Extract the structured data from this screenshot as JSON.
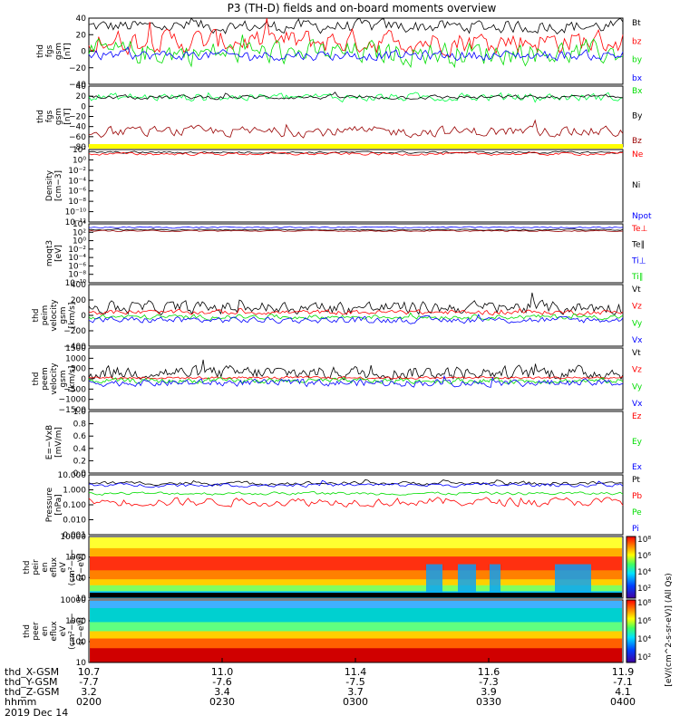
{
  "title": "P3 (TH-D) fields and on-board moments overview",
  "colors": {
    "black": "#000000",
    "red": "#ff0000",
    "green": "#00dd00",
    "blue": "#0000ff",
    "darkred": "#990000",
    "bright_green": "#00ff44",
    "yellow": "#ffff00"
  },
  "panels": [
    {
      "ylabel": [
        "thd",
        "fgs",
        "gsm",
        "[nT]"
      ],
      "yticks": [
        "40",
        "20",
        "0",
        "−20",
        "−40"
      ],
      "legend": [
        {
          "text": "Bt",
          "color": "black"
        },
        {
          "text": "bz",
          "color": "red"
        },
        {
          "text": "by",
          "color": "green"
        },
        {
          "text": "bx",
          "color": "blue"
        }
      ]
    },
    {
      "ylabel": [
        "thd",
        "fgs",
        "gsm",
        "[nT]"
      ],
      "yticks": [
        "40",
        "20",
        "0",
        "−20",
        "−40",
        "−60",
        "−80"
      ],
      "legend": [
        {
          "text": "Bx",
          "color": "green"
        },
        {
          "text": "By",
          "color": "black"
        },
        {
          "text": "Bz",
          "color": "darkred"
        }
      ]
    },
    {
      "ylabel": [
        "Density",
        "[cm−3]"
      ],
      "yticks": [
        "10²",
        "10⁰",
        "10⁻²",
        "10⁻⁴",
        "10⁻⁶",
        "10⁻⁸",
        "10⁻¹⁰",
        "10⁻¹²"
      ],
      "legend": [
        {
          "text": "Ne",
          "color": "red"
        },
        {
          "text": "Ni",
          "color": "black"
        },
        {
          "text": "Npot",
          "color": "blue"
        }
      ]
    },
    {
      "ylabel": [
        "moqt3",
        "[eV]"
      ],
      "yticks": [
        "10⁴",
        "10²",
        "10⁰",
        "10⁻²",
        "10⁻⁴",
        "10⁻⁶",
        "10⁻⁸",
        "10⁻¹⁰"
      ],
      "legend": [
        {
          "text": "Te⊥",
          "color": "red"
        },
        {
          "text": "Te∥",
          "color": "black"
        },
        {
          "text": "Ti⊥",
          "color": "blue"
        },
        {
          "text": "Ti∥",
          "color": "green"
        }
      ]
    },
    {
      "ylabel": [
        "thd",
        "peim",
        "velocity",
        "gsm",
        "[km/s]"
      ],
      "yticks": [
        "400",
        "200",
        "0",
        "−200",
        "−400"
      ],
      "legend": [
        {
          "text": "Vt",
          "color": "black"
        },
        {
          "text": "Vz",
          "color": "red"
        },
        {
          "text": "Vy",
          "color": "green"
        },
        {
          "text": "Vx",
          "color": "blue"
        }
      ]
    },
    {
      "ylabel": [
        "thd",
        "peem",
        "velocity",
        "gsm",
        "[km/s]"
      ],
      "yticks": [
        "1500",
        "1000",
        "500",
        "0",
        "−500",
        "−1000",
        "−1500"
      ],
      "legend": [
        {
          "text": "Vt",
          "color": "black"
        },
        {
          "text": "Vz",
          "color": "red"
        },
        {
          "text": "Vy",
          "color": "green"
        },
        {
          "text": "Vx",
          "color": "blue"
        }
      ]
    },
    {
      "ylabel": [
        "E=−VxB",
        "[mV/m]"
      ],
      "yticks": [
        "1.0",
        "0.8",
        "0.6",
        "0.4",
        "0.2",
        "0.0"
      ],
      "legend": [
        {
          "text": "Ez",
          "color": "red"
        },
        {
          "text": "Ey",
          "color": "green"
        },
        {
          "text": "Ex",
          "color": "blue"
        }
      ]
    },
    {
      "ylabel": [
        "Pressure",
        "[nPa]"
      ],
      "yticks": [
        "10.000",
        "1.000",
        "0.100",
        "0.010",
        "0.001"
      ],
      "legend": [
        {
          "text": "Pt",
          "color": "black"
        },
        {
          "text": "Pb",
          "color": "red"
        },
        {
          "text": "Pe",
          "color": "green"
        },
        {
          "text": "Pi",
          "color": "blue"
        }
      ]
    },
    {
      "ylabel": [
        "thd",
        "peir",
        "en",
        "eflux",
        "eV",
        "(cm²−s−",
        "sr−eV)"
      ],
      "yticks": [
        "10000",
        "1000",
        "100",
        "10"
      ]
    },
    {
      "ylabel": [
        "thd",
        "peer",
        "en",
        "eflux",
        "eV",
        "(cm²−s−",
        "sr−eV)"
      ],
      "yticks": [
        "10000",
        "1000",
        "100",
        "10"
      ]
    }
  ],
  "colorbar": {
    "ticks": [
      "10⁸",
      "10⁶",
      "10⁴",
      "10²",
      "10⁸",
      "10⁶",
      "10⁴",
      "10²"
    ],
    "label": "[eV/(cm^2-s-sr-eV)] (All Qs)"
  },
  "x_axis": {
    "rows": [
      {
        "label": "thd_X-GSM",
        "values": [
          "10.7",
          "11.0",
          "11.4",
          "11.6",
          "11.9"
        ]
      },
      {
        "label": "thd_Y-GSM",
        "values": [
          "-7.7",
          "-7.6",
          "-7.5",
          "-7.3",
          "-7.1"
        ]
      },
      {
        "label": "thd_Z-GSM",
        "values": [
          "3.2",
          "3.4",
          "3.7",
          "3.9",
          "4.1"
        ]
      },
      {
        "label": "hhmm",
        "values": [
          "0200",
          "0230",
          "0300",
          "0330",
          "0400"
        ]
      }
    ],
    "date": "2019 Dec 14"
  },
  "chart_data": {
    "type": "line",
    "title": "P3 (TH-D) fields and on-board moments overview",
    "x_range": [
      "0200",
      "0400"
    ],
    "series": [
      {
        "name": "Bt",
        "panel": 0,
        "mean": 30,
        "amp": 8
      },
      {
        "name": "bz",
        "panel": 0,
        "mean": 12,
        "amp": 14
      },
      {
        "name": "by",
        "panel": 0,
        "mean": -2,
        "amp": 14
      },
      {
        "name": "bx",
        "panel": 0,
        "mean": -5,
        "amp": 6
      },
      {
        "name": "Bx",
        "panel": 1,
        "mean": 18,
        "amp": 8
      },
      {
        "name": "By",
        "panel": 1,
        "mean": 18,
        "amp": 4
      },
      {
        "name": "Bz",
        "panel": 1,
        "mean": -50,
        "amp": 10
      },
      {
        "name": "Vt",
        "panel": 4,
        "mean": 100,
        "amp": 80
      },
      {
        "name": "Vz",
        "panel": 4,
        "mean": 40,
        "amp": 30
      },
      {
        "name": "Vy",
        "panel": 4,
        "mean": -20,
        "amp": 30
      },
      {
        "name": "Vx",
        "panel": 4,
        "mean": -60,
        "amp": 40
      },
      {
        "name": "Vt",
        "panel": 5,
        "mean": 300,
        "amp": 300
      },
      {
        "name": "Vz",
        "panel": 5,
        "mean": 50,
        "amp": 60
      },
      {
        "name": "Vy",
        "panel": 5,
        "mean": -100,
        "amp": 120
      },
      {
        "name": "Vx",
        "panel": 5,
        "mean": -200,
        "amp": 160
      },
      {
        "name": "Pt",
        "panel": 7,
        "mean": 1.0,
        "amp": 0.2
      },
      {
        "name": "Pi",
        "panel": 7,
        "mean": 0.9,
        "amp": 0.15
      },
      {
        "name": "Pe",
        "panel": 7,
        "mean": 0.2,
        "amp": 0.05
      },
      {
        "name": "Pb",
        "panel": 7,
        "mean": 0.08,
        "amp": 0.07
      }
    ]
  }
}
